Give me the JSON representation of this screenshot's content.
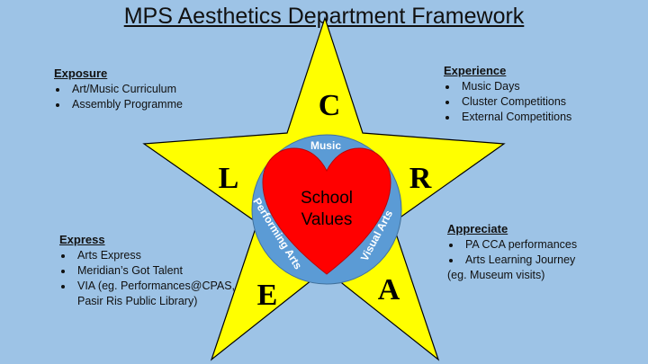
{
  "title": "MPS Aesthetics Department Framework",
  "letters": {
    "top": "C",
    "right": "R",
    "bottom_right": "A",
    "bottom_left": "E",
    "left": "L"
  },
  "ring": {
    "top": "Music",
    "left": "Performing Arts",
    "right": "Visual Arts"
  },
  "heart": {
    "line1": "School",
    "line2": "Values"
  },
  "exposure": {
    "heading": "Exposure",
    "items": [
      "Art/Music Curriculum",
      "Assembly Programme"
    ]
  },
  "experience": {
    "heading": "Experience",
    "items": [
      "Music Days",
      "Cluster Competitions",
      "External Competitions"
    ]
  },
  "express": {
    "heading": "Express",
    "items": [
      "Arts Express",
      "Meridian’s Got Talent",
      "VIA (eg. Performances@CPAS,",
      "Pasir Ris Public Library)"
    ]
  },
  "appreciate": {
    "heading": "Appreciate",
    "items": [
      "PA CCA performances",
      "Arts Learning Journey",
      "(eg. Museum visits)"
    ]
  },
  "colors": {
    "background": "#9dc3e6",
    "star": "#ffff00",
    "ring": "#5b9bd5",
    "heart": "#ff0000"
  }
}
